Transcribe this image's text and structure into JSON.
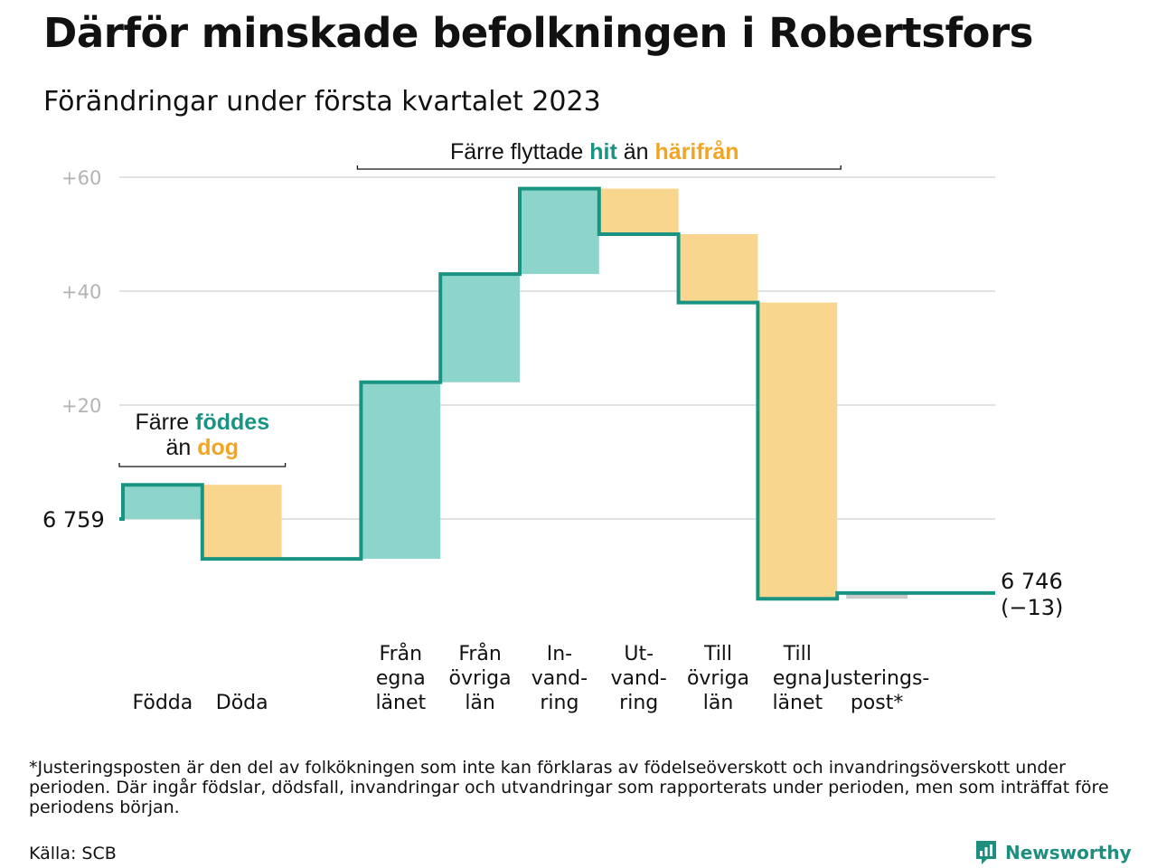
{
  "title": "Därför minskade befolkningen i Robertsfors",
  "subtitle": "Förändringar under första kvartalet 2023",
  "chart_data": {
    "type": "waterfall",
    "start_value": 6759,
    "start_label": "6 759",
    "end_value": 6746,
    "end_label": "6 746",
    "end_change_label": "(−13)",
    "ylim": [
      -14,
      62
    ],
    "yticks": [
      {
        "value": 20,
        "label": "+20"
      },
      {
        "value": 40,
        "label": "+40"
      },
      {
        "value": 60,
        "label": "+60"
      }
    ],
    "grid": true,
    "steps": [
      {
        "lines": [
          "Födda"
        ],
        "value": 6,
        "direction": "in"
      },
      {
        "lines": [
          "Döda"
        ],
        "value": -13,
        "direction": "out"
      },
      {
        "lines": [
          "Från",
          "egna",
          "länet"
        ],
        "value": 31,
        "direction": "in"
      },
      {
        "lines": [
          "Från",
          "övriga",
          "län"
        ],
        "value": 19,
        "direction": "in"
      },
      {
        "lines": [
          "In-",
          "vand-",
          "ring"
        ],
        "value": 15,
        "direction": "in"
      },
      {
        "lines": [
          "Ut-",
          "vand-",
          "ring"
        ],
        "value": -8,
        "direction": "out"
      },
      {
        "lines": [
          "Till",
          "övriga",
          "län"
        ],
        "value": -12,
        "direction": "out"
      },
      {
        "lines": [
          "Till",
          "egna",
          "länet"
        ],
        "value": -52,
        "direction": "out"
      },
      {
        "lines": [
          "Justerings-",
          "post*"
        ],
        "value": 1,
        "direction": "adjust"
      }
    ],
    "gap_after_step": 1,
    "annotations": [
      {
        "id": "births",
        "parts": [
          [
            "Färre ",
            "plain"
          ],
          [
            "föddes",
            "in"
          ],
          [
            "|än ",
            "plain"
          ],
          [
            "dog",
            "out"
          ]
        ]
      },
      {
        "id": "migration",
        "parts": [
          [
            "Färre flyttade ",
            "plain"
          ],
          [
            "hit",
            "in"
          ],
          [
            " än ",
            "plain"
          ],
          [
            "härifrån",
            "out"
          ]
        ]
      }
    ],
    "colors": {
      "in": "#8dd5cb",
      "out": "#f9d68e",
      "adjust": "#c9c9c9",
      "line": "#1a9482",
      "grid": "#e2e2e2",
      "highlight_in": "#1a9482",
      "highlight_out": "#f2a522"
    }
  },
  "footnote": "*Justeringsposten är den del av folkökningen som inte kan förklaras av födelseöverskott och invandringsöverskott under perioden. Där ingår födslar, dödsfall, invandringar och utvandringar som rapporterats under perioden, men som inträffat före periodens början.",
  "source": "Källa: SCB",
  "brand": {
    "name": "Newsworthy",
    "icon": "newsworthy-logo-icon"
  }
}
